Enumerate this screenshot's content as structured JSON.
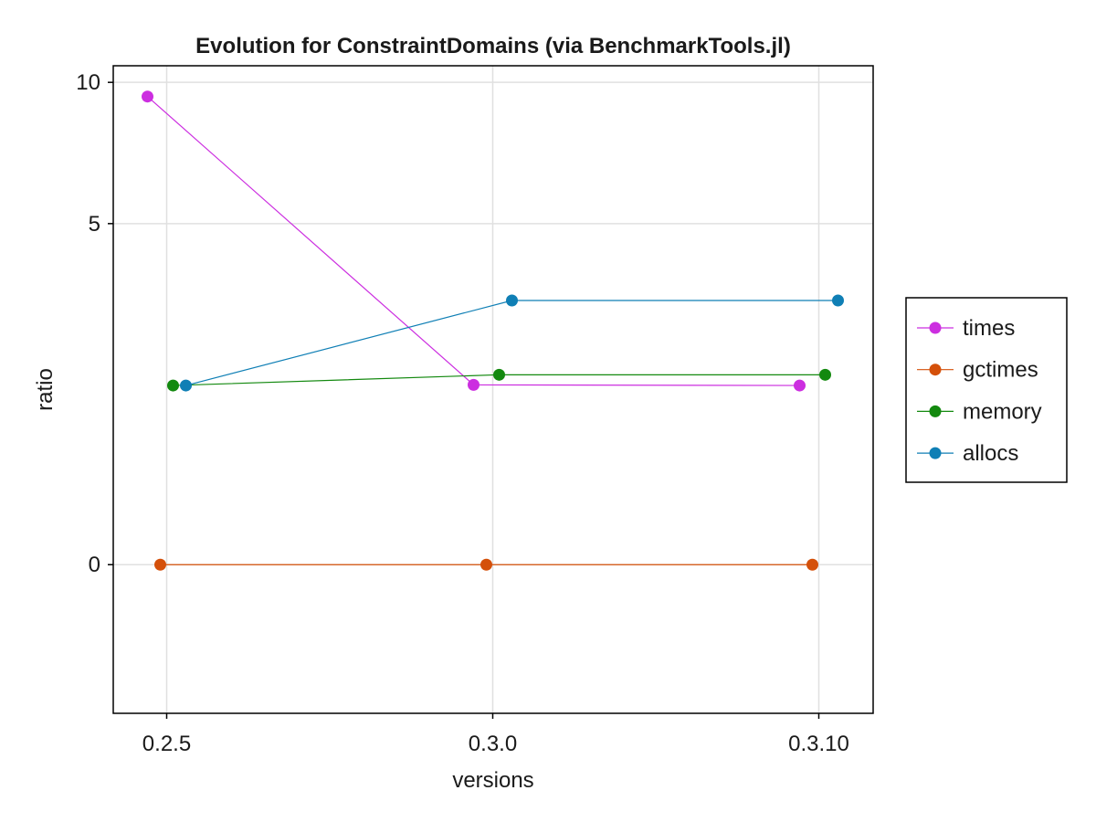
{
  "chart_data": {
    "type": "line",
    "title": "Evolution for ConstraintDomains (via BenchmarkTools.jl)",
    "xlabel": "versions",
    "ylabel": "ratio",
    "categories": [
      "0.2.5",
      "0.3.0",
      "0.3.10"
    ],
    "yticks": [
      0,
      5,
      10
    ],
    "ytick_labels": [
      "0",
      "5",
      "10"
    ],
    "ylim": [
      -0.95,
      10.7
    ],
    "ysqrt_scale": true,
    "grid": true,
    "legend_position": "right",
    "series": [
      {
        "name": "times",
        "color": "#cc2ee0",
        "values": [
          9.42,
          1.39,
          1.38
        ]
      },
      {
        "name": "gctimes",
        "color": "#d4500a",
        "values": [
          0,
          0,
          0
        ]
      },
      {
        "name": "memory",
        "color": "#13890f",
        "values": [
          1.38,
          1.55,
          1.55
        ]
      },
      {
        "name": "allocs",
        "color": "#0f7fb5",
        "values": [
          1.38,
          3.0,
          3.0
        ]
      }
    ]
  }
}
